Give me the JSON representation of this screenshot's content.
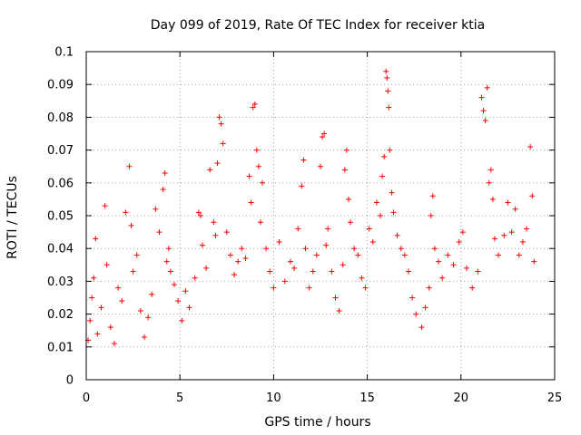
{
  "chart_data": {
    "type": "scatter",
    "title": "Day 099 of 2019, Rate Of TEC Index for receiver ktia",
    "xlabel": "GPS time / hours",
    "ylabel": "ROTI / TECUs",
    "xlim": [
      0,
      25
    ],
    "ylim": [
      0,
      0.1
    ],
    "xticks": [
      0,
      5,
      10,
      15,
      20,
      25
    ],
    "xtick_labels": [
      "0",
      "5",
      "10",
      "15",
      "20",
      "25"
    ],
    "yticks": [
      0,
      0.01,
      0.02,
      0.03,
      0.04,
      0.05,
      0.06,
      0.07,
      0.08,
      0.09,
      0.1
    ],
    "ytick_labels": [
      "0",
      "0.01",
      "0.02",
      "0.03",
      "0.04",
      "0.05",
      "0.06",
      "0.07",
      "0.08",
      "0.09",
      "0.1"
    ],
    "grid": true,
    "marker": "+",
    "color": "#ff0000",
    "series": [
      {
        "name": "ROTI",
        "points": [
          [
            0.1,
            0.012
          ],
          [
            0.2,
            0.018
          ],
          [
            0.3,
            0.025
          ],
          [
            0.4,
            0.031
          ],
          [
            0.5,
            0.043
          ],
          [
            0.6,
            0.014
          ],
          [
            0.8,
            0.022
          ],
          [
            1.0,
            0.053
          ],
          [
            1.1,
            0.035
          ],
          [
            1.3,
            0.016
          ],
          [
            1.5,
            0.011
          ],
          [
            1.7,
            0.028
          ],
          [
            1.9,
            0.024
          ],
          [
            2.1,
            0.051
          ],
          [
            2.3,
            0.065
          ],
          [
            2.4,
            0.047
          ],
          [
            2.5,
            0.033
          ],
          [
            2.7,
            0.038
          ],
          [
            2.9,
            0.021
          ],
          [
            3.1,
            0.013
          ],
          [
            3.3,
            0.019
          ],
          [
            3.5,
            0.026
          ],
          [
            3.7,
            0.052
          ],
          [
            3.9,
            0.045
          ],
          [
            4.1,
            0.058
          ],
          [
            4.2,
            0.063
          ],
          [
            4.3,
            0.036
          ],
          [
            4.4,
            0.04
          ],
          [
            4.5,
            0.033
          ],
          [
            4.7,
            0.029
          ],
          [
            4.9,
            0.024
          ],
          [
            5.1,
            0.018
          ],
          [
            5.3,
            0.027
          ],
          [
            5.5,
            0.022
          ],
          [
            5.8,
            0.031
          ],
          [
            6.0,
            0.051
          ],
          [
            6.1,
            0.05
          ],
          [
            6.2,
            0.041
          ],
          [
            6.4,
            0.034
          ],
          [
            6.6,
            0.064
          ],
          [
            6.8,
            0.048
          ],
          [
            6.9,
            0.044
          ],
          [
            7.0,
            0.066
          ],
          [
            7.1,
            0.08
          ],
          [
            7.2,
            0.078
          ],
          [
            7.3,
            0.072
          ],
          [
            7.5,
            0.045
          ],
          [
            7.7,
            0.038
          ],
          [
            7.9,
            0.032
          ],
          [
            8.1,
            0.036
          ],
          [
            8.3,
            0.04
          ],
          [
            8.5,
            0.037
          ],
          [
            8.7,
            0.062
          ],
          [
            8.8,
            0.054
          ],
          [
            8.9,
            0.083
          ],
          [
            9.0,
            0.084
          ],
          [
            9.1,
            0.07
          ],
          [
            9.2,
            0.065
          ],
          [
            9.3,
            0.048
          ],
          [
            9.4,
            0.06
          ],
          [
            9.6,
            0.04
          ],
          [
            9.8,
            0.033
          ],
          [
            10.0,
            0.028
          ],
          [
            10.3,
            0.042
          ],
          [
            10.6,
            0.03
          ],
          [
            10.9,
            0.036
          ],
          [
            11.1,
            0.034
          ],
          [
            11.3,
            0.046
          ],
          [
            11.5,
            0.059
          ],
          [
            11.6,
            0.067
          ],
          [
            11.7,
            0.04
          ],
          [
            11.9,
            0.028
          ],
          [
            12.1,
            0.033
          ],
          [
            12.3,
            0.038
          ],
          [
            12.5,
            0.065
          ],
          [
            12.6,
            0.074
          ],
          [
            12.7,
            0.075
          ],
          [
            12.8,
            0.041
          ],
          [
            12.9,
            0.046
          ],
          [
            13.1,
            0.033
          ],
          [
            13.3,
            0.025
          ],
          [
            13.5,
            0.021
          ],
          [
            13.7,
            0.035
          ],
          [
            13.8,
            0.064
          ],
          [
            13.9,
            0.07
          ],
          [
            14.0,
            0.055
          ],
          [
            14.1,
            0.048
          ],
          [
            14.3,
            0.04
          ],
          [
            14.5,
            0.038
          ],
          [
            14.7,
            0.031
          ],
          [
            14.9,
            0.028
          ],
          [
            15.1,
            0.046
          ],
          [
            15.3,
            0.042
          ],
          [
            15.5,
            0.054
          ],
          [
            15.7,
            0.05
          ],
          [
            15.8,
            0.062
          ],
          [
            15.9,
            0.068
          ],
          [
            16.0,
            0.094
          ],
          [
            16.05,
            0.092
          ],
          [
            16.1,
            0.088
          ],
          [
            16.15,
            0.083
          ],
          [
            16.2,
            0.07
          ],
          [
            16.3,
            0.057
          ],
          [
            16.4,
            0.051
          ],
          [
            16.6,
            0.044
          ],
          [
            16.8,
            0.04
          ],
          [
            17.0,
            0.038
          ],
          [
            17.2,
            0.033
          ],
          [
            17.4,
            0.025
          ],
          [
            17.6,
            0.02
          ],
          [
            17.9,
            0.016
          ],
          [
            18.1,
            0.022
          ],
          [
            18.3,
            0.028
          ],
          [
            18.4,
            0.05
          ],
          [
            18.5,
            0.056
          ],
          [
            18.6,
            0.04
          ],
          [
            18.8,
            0.036
          ],
          [
            19.0,
            0.031
          ],
          [
            19.3,
            0.038
          ],
          [
            19.6,
            0.035
          ],
          [
            19.9,
            0.042
          ],
          [
            20.1,
            0.045
          ],
          [
            20.3,
            0.034
          ],
          [
            20.6,
            0.028
          ],
          [
            20.9,
            0.033
          ],
          [
            21.1,
            0.086
          ],
          [
            21.2,
            0.082
          ],
          [
            21.3,
            0.079
          ],
          [
            21.4,
            0.089
          ],
          [
            21.5,
            0.06
          ],
          [
            21.6,
            0.064
          ],
          [
            21.7,
            0.055
          ],
          [
            21.8,
            0.043
          ],
          [
            22.0,
            0.038
          ],
          [
            22.3,
            0.044
          ],
          [
            22.5,
            0.054
          ],
          [
            22.7,
            0.045
          ],
          [
            22.9,
            0.052
          ],
          [
            23.1,
            0.038
          ],
          [
            23.3,
            0.042
          ],
          [
            23.5,
            0.046
          ],
          [
            23.7,
            0.071
          ],
          [
            23.8,
            0.056
          ],
          [
            23.9,
            0.036
          ]
        ]
      }
    ]
  }
}
